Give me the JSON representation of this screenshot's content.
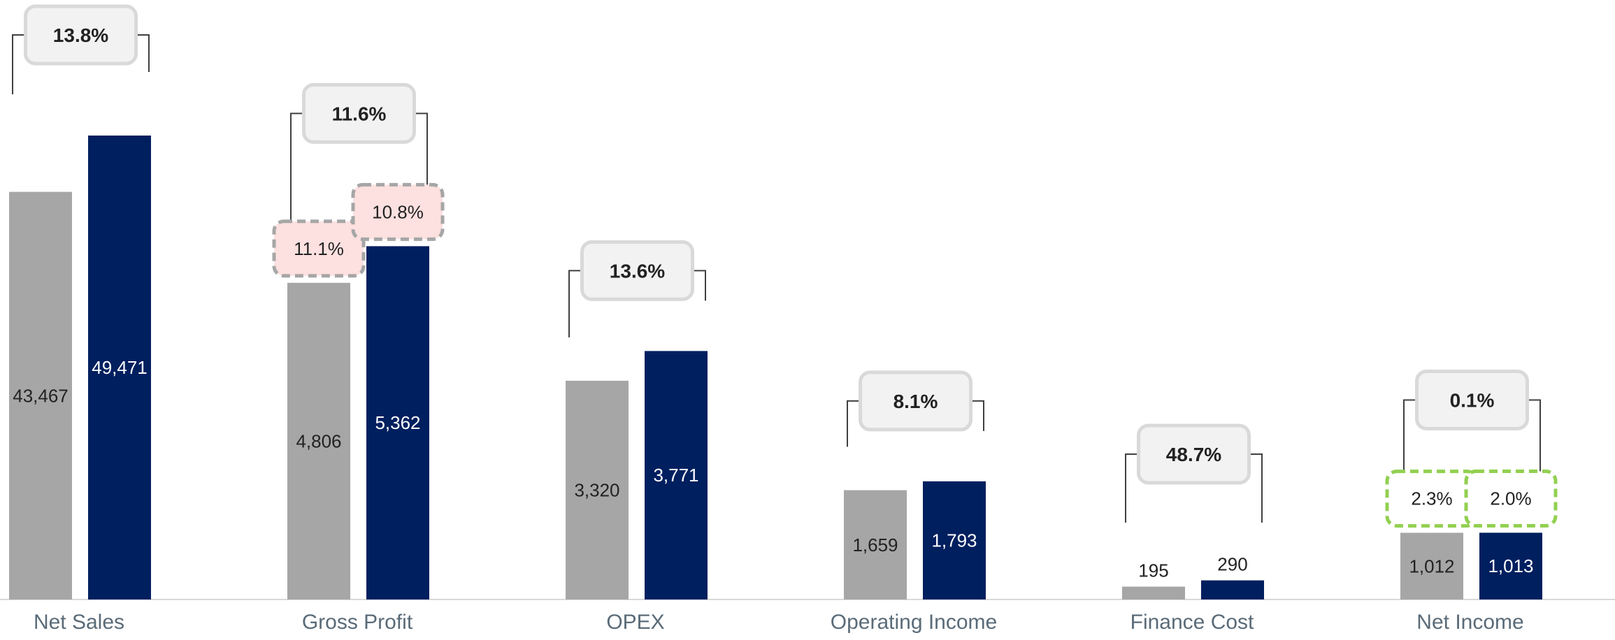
{
  "chart_data": {
    "type": "bar",
    "categories": [
      "Net Sales",
      "Gross Profit",
      "OPEX",
      "Operating Income",
      "Finance Cost",
      "Net Income"
    ],
    "series": [
      {
        "values": [
          43467,
          4806,
          3320,
          1659,
          195,
          1012
        ],
        "color": "#a6a6a6"
      },
      {
        "values": [
          49471,
          5362,
          3771,
          1793,
          290,
          1013
        ],
        "color": "#001f5f"
      }
    ],
    "value_labels": [
      [
        "43,467",
        "4,806",
        "3,320",
        "1,659",
        "195",
        "1,012"
      ],
      [
        "49,471",
        "5,362",
        "3,771",
        "1,793",
        "290",
        "1,013"
      ]
    ],
    "growth_labels": [
      "13.8%",
      "11.6%",
      "13.6%",
      "8.1%",
      "48.7%",
      "0.1%"
    ],
    "margin_labels": [
      {
        "category": "Gross Profit",
        "values": [
          "11.1%",
          "10.8%"
        ],
        "fill": "#fde0e0",
        "border": "#a6a6a6"
      },
      {
        "category": "Net Income",
        "values": [
          "2.3%",
          "2.0%"
        ],
        "fill": "#ffffff",
        "border": "#92d050"
      }
    ],
    "title": "",
    "xlabel": "",
    "ylabel": "",
    "legend": "none",
    "grid": false,
    "axis_break": true
  }
}
